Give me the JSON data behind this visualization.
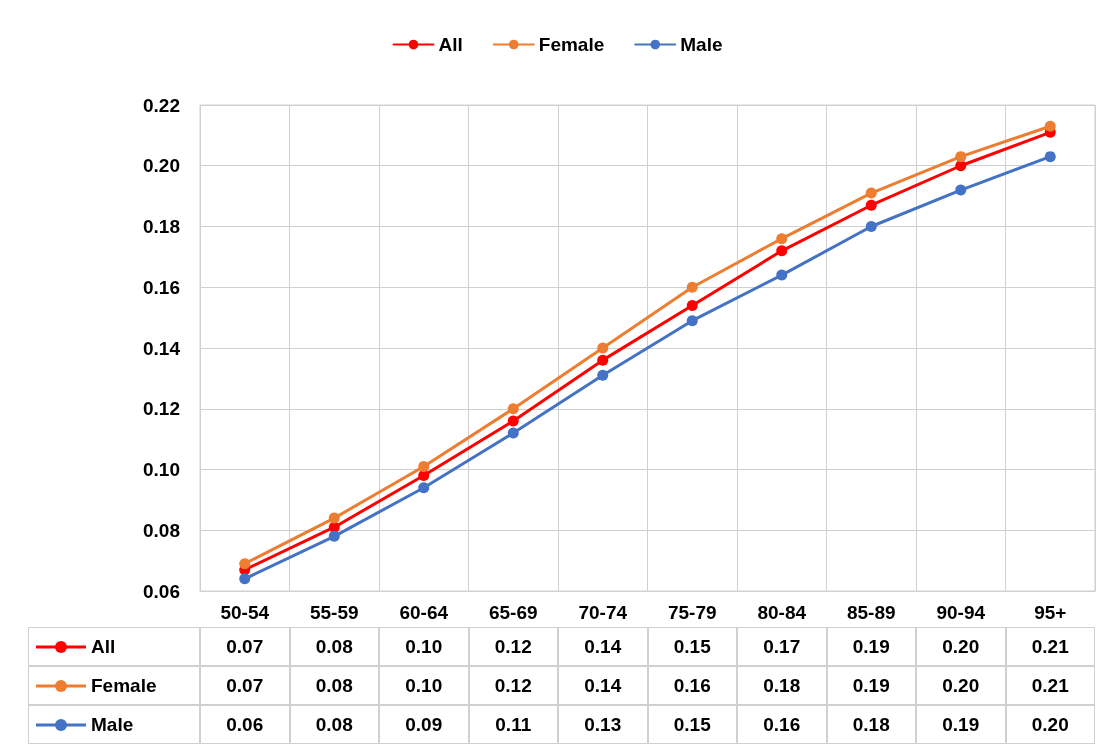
{
  "chart_data": {
    "type": "line",
    "categories": [
      "50-54",
      "55-59",
      "60-64",
      "65-69",
      "70-74",
      "75-79",
      "80-84",
      "85-89",
      "90-94",
      "95+"
    ],
    "series": [
      {
        "name": "All",
        "color": "#ff0000",
        "values": [
          0.067,
          0.081,
          0.098,
          0.116,
          0.136,
          0.154,
          0.172,
          0.187,
          0.2,
          0.211
        ],
        "value_labels": [
          "0.07",
          "0.08",
          "0.10",
          "0.12",
          "0.14",
          "0.15",
          "0.17",
          "0.19",
          "0.20",
          "0.21"
        ]
      },
      {
        "name": "Female",
        "color": "#ed7d31",
        "values": [
          0.069,
          0.084,
          0.101,
          0.12,
          0.14,
          0.16,
          0.176,
          0.191,
          0.203,
          0.213
        ],
        "value_labels": [
          "0.07",
          "0.08",
          "0.10",
          "0.12",
          "0.14",
          "0.16",
          "0.18",
          "0.19",
          "0.20",
          "0.21"
        ]
      },
      {
        "name": "Male",
        "color": "#4472c4",
        "values": [
          0.064,
          0.078,
          0.094,
          0.112,
          0.131,
          0.149,
          0.164,
          0.18,
          0.192,
          0.203
        ],
        "value_labels": [
          "0.06",
          "0.08",
          "0.09",
          "0.11",
          "0.13",
          "0.15",
          "0.16",
          "0.18",
          "0.19",
          "0.20"
        ]
      }
    ],
    "ylim": [
      0.06,
      0.22
    ],
    "yticks": [
      {
        "value": 0.06,
        "label": "0.06"
      },
      {
        "value": 0.08,
        "label": "0.08"
      },
      {
        "value": 0.1,
        "label": "0.10"
      },
      {
        "value": 0.12,
        "label": "0.12"
      },
      {
        "value": 0.14,
        "label": "0.14"
      },
      {
        "value": 0.16,
        "label": "0.16"
      },
      {
        "value": 0.18,
        "label": "0.18"
      },
      {
        "value": 0.2,
        "label": "0.20"
      },
      {
        "value": 0.22,
        "label": "0.22"
      }
    ],
    "grid": true,
    "legend": "top",
    "marker": "circle",
    "line_style": "solid"
  }
}
